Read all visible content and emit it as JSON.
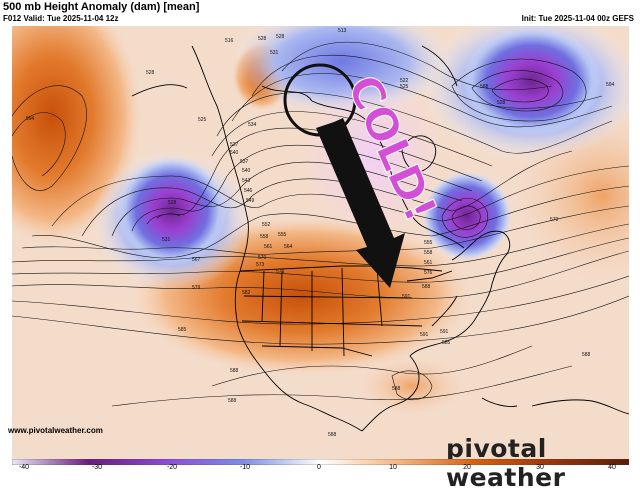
{
  "header": {
    "title": "500 mb Height Anomaly (dam) [mean]",
    "valid": "F012 Valid: Tue 2025-11-04 12z",
    "init": "Init: Tue 2025-11-04 00z GEFS"
  },
  "annotation": {
    "text": "COLD!"
  },
  "footer": {
    "website": "www.pivotalweather.com",
    "brand": "pivotal weather"
  },
  "colorbar": {
    "ticks": [
      "-40",
      "-30",
      "-20",
      "-10",
      "0",
      "10",
      "20",
      "30",
      "40"
    ],
    "stops": [
      {
        "v": -40,
        "c": "#e9e6f7"
      },
      {
        "v": -30,
        "c": "#6b1a7e"
      },
      {
        "v": -20,
        "c": "#8c4bd8"
      },
      {
        "v": -10,
        "c": "#7b8fe6"
      },
      {
        "v": 0,
        "c": "#ffffff"
      },
      {
        "v": 10,
        "c": "#f7b680"
      },
      {
        "v": 20,
        "c": "#d8610f"
      },
      {
        "v": 30,
        "c": "#9a3409"
      },
      {
        "v": 40,
        "c": "#5b1d0a"
      }
    ]
  },
  "contour_labels": [
    "516",
    "528",
    "531",
    "528",
    "513",
    "522",
    "525",
    "528",
    "528",
    "534",
    "537",
    "540",
    "543",
    "546",
    "549",
    "552",
    "555",
    "558",
    "561",
    "564",
    "567",
    "570",
    "573",
    "576",
    "579",
    "582",
    "585",
    "588",
    "591",
    "594",
    "525",
    "528",
    "531",
    "537",
    "540",
    "555",
    "558",
    "561",
    "576",
    "588",
    "591",
    "588",
    "588",
    "588",
    "594",
    "588",
    "591",
    "588",
    "585",
    "579"
  ]
}
